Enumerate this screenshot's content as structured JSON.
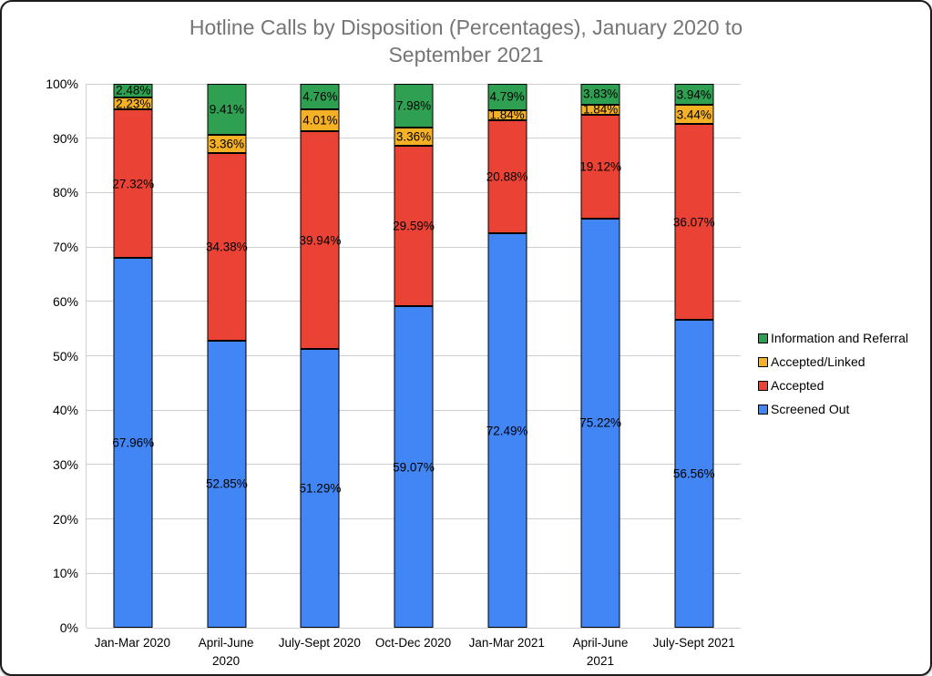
{
  "chart_data": {
    "type": "bar",
    "stacked": true,
    "title": "Hotline Calls by Disposition (Percentages), January 2020 to September 2021",
    "title_color": "#757575",
    "categories": [
      "Jan-Mar 2020",
      "April-June\n2020",
      "July-Sept 2020",
      "Oct-Dec 2020",
      "Jan-Mar 2021",
      "April-June\n2021",
      "July-Sept 2021"
    ],
    "series": [
      {
        "name": "Screened Out",
        "color": "#4285F4",
        "values": [
          67.96,
          52.85,
          51.29,
          59.07,
          72.49,
          75.22,
          56.56
        ]
      },
      {
        "name": "Accepted",
        "color": "#EA4335",
        "values": [
          27.32,
          34.38,
          39.94,
          29.59,
          20.88,
          19.12,
          36.07
        ]
      },
      {
        "name": "Accepted/Linked",
        "color": "#F5B126",
        "values": [
          2.23,
          3.36,
          4.01,
          3.36,
          1.84,
          1.84,
          3.44
        ]
      },
      {
        "name": "Information and Referral",
        "color": "#2FA052",
        "values": [
          2.48,
          9.41,
          4.76,
          7.98,
          4.79,
          3.83,
          3.94
        ]
      }
    ],
    "data_label_suffix": "%",
    "data_label_decimals": 2,
    "xlabel": "",
    "ylabel": "",
    "ylim": [
      0,
      100
    ],
    "yticks": [
      "0%",
      "10%",
      "20%",
      "30%",
      "40%",
      "50%",
      "60%",
      "70%",
      "80%",
      "90%",
      "100%"
    ],
    "grid": true,
    "gridline_color": "#d0d0d0",
    "bar_border_color": "#000000",
    "legend_position": "right",
    "legend_order_top_to_bottom": [
      "Information and Referral",
      "Accepted/Linked",
      "Accepted",
      "Screened Out"
    ]
  }
}
